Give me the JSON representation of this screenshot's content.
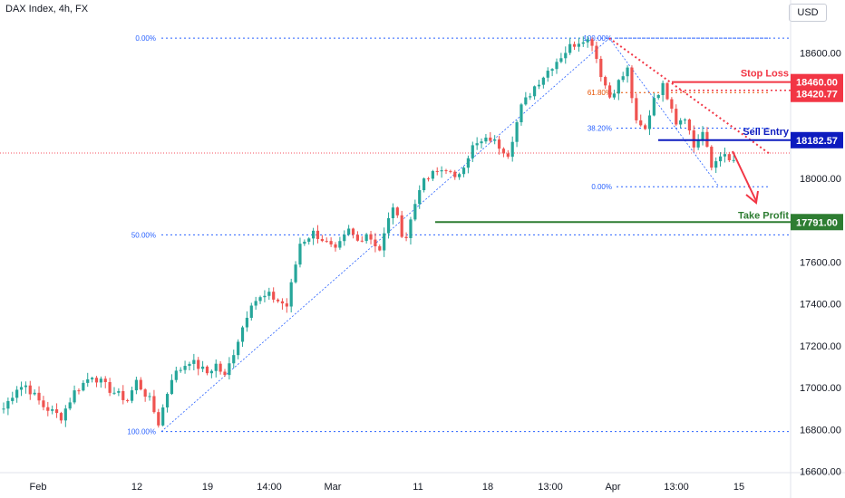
{
  "header": {
    "title": "DAX Index, 4h, FX"
  },
  "currency_button": "USD",
  "chart_data": {
    "type": "candlestick",
    "title": "DAX Index, 4h, FX",
    "currency": "USD",
    "y_ticks": [
      16600,
      16800,
      17000,
      17200,
      17400,
      17600,
      17800,
      18000,
      18200,
      18400,
      18600
    ],
    "y_tick_labels": [
      "16600.00",
      "16800.00",
      "17000.00",
      "17200.00",
      "17400.00",
      "17600.00",
      "",
      "18000.00",
      "",
      "",
      "18600.00"
    ],
    "ylim": [
      16570,
      18780
    ],
    "x_tick_labels": [
      "Feb",
      "12",
      "19",
      "14:00",
      "Mar",
      "11",
      "18",
      "13:00",
      "Apr",
      "13:00",
      "15"
    ],
    "price_path": [
      [
        0,
        16900
      ],
      [
        3,
        17000
      ],
      [
        5,
        17010
      ],
      [
        9,
        16910
      ],
      [
        13,
        16860
      ],
      [
        16,
        16980
      ],
      [
        20,
        17060
      ],
      [
        24,
        16990
      ],
      [
        28,
        16940
      ],
      [
        30,
        17030
      ],
      [
        33,
        16940
      ],
      [
        35,
        16830
      ],
      [
        38,
        17050
      ],
      [
        42,
        17130
      ],
      [
        46,
        17070
      ],
      [
        48,
        17110
      ],
      [
        50,
        17050
      ],
      [
        52,
        17170
      ],
      [
        56,
        17410
      ],
      [
        60,
        17440
      ],
      [
        64,
        17390
      ],
      [
        67,
        17690
      ],
      [
        70,
        17740
      ],
      [
        72,
        17710
      ],
      [
        75,
        17650
      ],
      [
        78,
        17750
      ],
      [
        80,
        17700
      ],
      [
        82,
        17740
      ],
      [
        85,
        17660
      ],
      [
        88,
        17870
      ],
      [
        90,
        17740
      ],
      [
        91,
        17720
      ],
      [
        94,
        17960
      ],
      [
        97,
        18020
      ],
      [
        100,
        18050
      ],
      [
        102,
        17990
      ],
      [
        106,
        18150
      ],
      [
        110,
        18190
      ],
      [
        114,
        18120
      ],
      [
        117,
        18340
      ],
      [
        120,
        18440
      ],
      [
        124,
        18540
      ],
      [
        128,
        18630
      ],
      [
        131,
        18670
      ],
      [
        133,
        18650
      ],
      [
        135,
        18500
      ],
      [
        137,
        18390
      ],
      [
        139,
        18460
      ],
      [
        141,
        18520
      ],
      [
        143,
        18260
      ],
      [
        145,
        18230
      ],
      [
        147,
        18390
      ],
      [
        149,
        18440
      ],
      [
        151,
        18350
      ],
      [
        152,
        18270
      ],
      [
        154,
        18300
      ],
      [
        156,
        18150
      ],
      [
        158,
        18220
      ],
      [
        160,
        18050
      ],
      [
        162,
        18120
      ],
      [
        164,
        18080
      ]
    ],
    "fib_left": {
      "levels": [
        {
          "label": "0.00%",
          "value": 18670
        },
        {
          "label": "50.00%",
          "value": 17730
        },
        {
          "label": "100.00%",
          "value": 16790
        }
      ]
    },
    "fib_right": {
      "levels": [
        {
          "label": "100.00%",
          "value": 18670
        },
        {
          "label": "61.80%",
          "value": 18410
        },
        {
          "label": "38.20%",
          "value": 18240
        },
        {
          "label": "0.00%",
          "value": 17960
        }
      ]
    },
    "levels": [
      {
        "name": "Stop Loss",
        "price_label": "18460.00",
        "value": 18460,
        "color": "#f23645"
      },
      {
        "name": "",
        "price_label": "18420.77",
        "value": 18420.77,
        "color": "#f23645"
      },
      {
        "name": "Sell Entry",
        "price_label": "18182.57",
        "value": 18182.57,
        "color": "#0d1bbf"
      },
      {
        "name": "Take Profit",
        "price_label": "17791.00",
        "value": 17791,
        "color": "#2e7d32"
      }
    ],
    "grid": false,
    "colors": {
      "up": "#26a69a",
      "down": "#ef5350",
      "fib": "#2962ff",
      "stop": "#f23645",
      "entry": "#0d1bbf",
      "target": "#2e7d32"
    }
  }
}
